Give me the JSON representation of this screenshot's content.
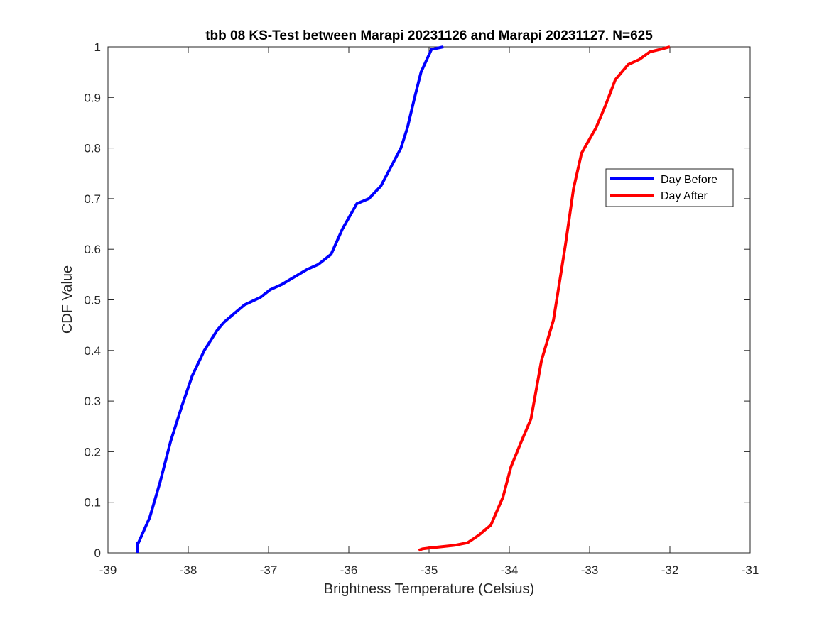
{
  "chart_data": {
    "type": "line",
    "title": "tbb 08 KS-Test between Marapi 20231126 and Marapi 20231127. N=625",
    "xlabel": "Brightness Temperature (Celsius)",
    "ylabel": "CDF Value",
    "xlim": [
      -39,
      -31
    ],
    "ylim": [
      0,
      1
    ],
    "xticks": [
      -39,
      -38,
      -37,
      -36,
      -35,
      -34,
      -33,
      -32,
      -31
    ],
    "xtick_labels": [
      "-39",
      "-38",
      "-37",
      "-36",
      "-35",
      "-34",
      "-33",
      "-32",
      "-31"
    ],
    "yticks": [
      0,
      0.1,
      0.2,
      0.3,
      0.4,
      0.5,
      0.6,
      0.7,
      0.8,
      0.9,
      1
    ],
    "ytick_labels": [
      "0",
      "0.1",
      "0.2",
      "0.3",
      "0.4",
      "0.5",
      "0.6",
      "0.7",
      "0.8",
      "0.9",
      "1"
    ],
    "grid": false,
    "legend_position": "top-right",
    "series": [
      {
        "name": "Day Before",
        "color": "#0000ff",
        "x": [
          -38.63,
          -38.63,
          -38.62,
          -38.48,
          -38.35,
          -38.22,
          -38.08,
          -37.95,
          -37.8,
          -37.64,
          -37.56,
          -37.45,
          -37.3,
          -37.1,
          -36.98,
          -36.84,
          -36.68,
          -36.52,
          -36.38,
          -36.22,
          -36.08,
          -35.9,
          -35.75,
          -35.6,
          -35.45,
          -35.35,
          -35.27,
          -35.18,
          -35.1,
          -34.97,
          -34.82
        ],
        "y": [
          0.0,
          0.02,
          0.02,
          0.07,
          0.14,
          0.22,
          0.29,
          0.35,
          0.4,
          0.44,
          0.455,
          0.47,
          0.49,
          0.505,
          0.52,
          0.53,
          0.545,
          0.56,
          0.57,
          0.59,
          0.64,
          0.69,
          0.7,
          0.725,
          0.77,
          0.8,
          0.84,
          0.9,
          0.95,
          0.995,
          1.0
        ]
      },
      {
        "name": "Day After",
        "color": "#ff0000",
        "x": [
          -35.13,
          -35.08,
          -34.98,
          -34.85,
          -34.68,
          -34.52,
          -34.38,
          -34.23,
          -34.08,
          -33.98,
          -33.85,
          -33.73,
          -33.6,
          -33.45,
          -33.38,
          -33.3,
          -33.2,
          -33.1,
          -32.92,
          -32.8,
          -32.68,
          -32.52,
          -32.38,
          -32.25,
          -32.12,
          -32.0
        ],
        "y": [
          0.005,
          0.008,
          0.01,
          0.012,
          0.015,
          0.02,
          0.035,
          0.055,
          0.11,
          0.17,
          0.22,
          0.265,
          0.38,
          0.46,
          0.53,
          0.61,
          0.72,
          0.79,
          0.84,
          0.885,
          0.935,
          0.965,
          0.975,
          0.99,
          0.995,
          1.0
        ]
      }
    ]
  }
}
